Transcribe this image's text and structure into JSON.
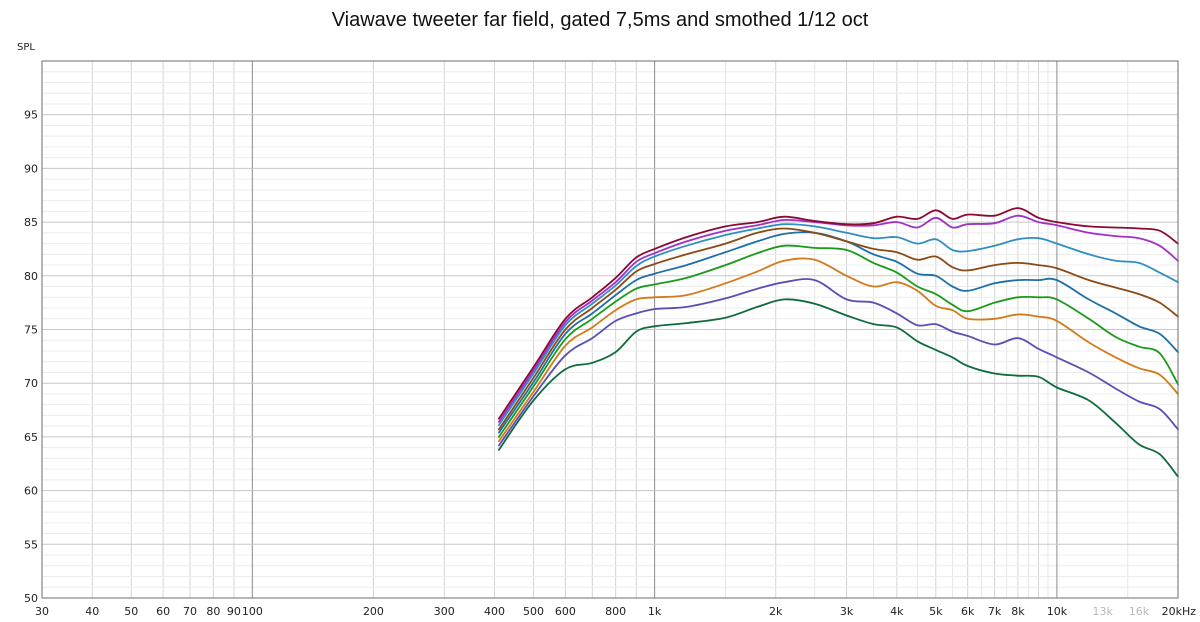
{
  "chart_data": {
    "type": "line",
    "title": "Viawave tweeter far field, gated 7,5ms and smothed 1/12 oct",
    "ylabel": "SPL",
    "xlabel": "",
    "xscale": "log",
    "xlim": [
      30,
      20000
    ],
    "ylim": [
      50,
      100
    ],
    "grid": true,
    "legend": "none",
    "x_ticks": [
      {
        "value": 30,
        "label": "30"
      },
      {
        "value": 40,
        "label": "40"
      },
      {
        "value": 50,
        "label": "50"
      },
      {
        "value": 60,
        "label": "60"
      },
      {
        "value": 70,
        "label": "70"
      },
      {
        "value": 80,
        "label": "80"
      },
      {
        "value": 90,
        "label": "90"
      },
      {
        "value": 100,
        "label": "100"
      },
      {
        "value": 200,
        "label": "200"
      },
      {
        "value": 300,
        "label": "300"
      },
      {
        "value": 400,
        "label": "400"
      },
      {
        "value": 500,
        "label": "500"
      },
      {
        "value": 600,
        "label": "600"
      },
      {
        "value": 800,
        "label": "800"
      },
      {
        "value": 1000,
        "label": "1k"
      },
      {
        "value": 2000,
        "label": "2k"
      },
      {
        "value": 3000,
        "label": "3k"
      },
      {
        "value": 4000,
        "label": "4k"
      },
      {
        "value": 5000,
        "label": "5k"
      },
      {
        "value": 6000,
        "label": "6k"
      },
      {
        "value": 7000,
        "label": "7k"
      },
      {
        "value": 8000,
        "label": "8k"
      },
      {
        "value": 10000,
        "label": "10k"
      },
      {
        "value": 13000,
        "label": "13k",
        "faded": true
      },
      {
        "value": 16000,
        "label": "16k",
        "faded": true
      },
      {
        "value": 20000,
        "label": "20kHz"
      }
    ],
    "y_ticks": [
      50,
      55,
      60,
      65,
      70,
      75,
      80,
      85,
      90,
      95
    ],
    "x": [
      410,
      500,
      600,
      700,
      800,
      900,
      1000,
      1200,
      1500,
      1800,
      2100,
      2500,
      3000,
      3500,
      4000,
      4500,
      5000,
      5500,
      6000,
      7000,
      8000,
      9000,
      10000,
      12000,
      14000,
      16000,
      18000,
      20000
    ],
    "series": [
      {
        "color": "#8b0a33",
        "values": [
          66.7,
          71.5,
          76.0,
          78.0,
          79.8,
          81.7,
          82.5,
          83.6,
          84.6,
          85.0,
          85.5,
          85.1,
          84.8,
          84.9,
          85.5,
          85.3,
          86.1,
          85.3,
          85.7,
          85.6,
          86.3,
          85.4,
          85.0,
          84.6,
          84.5,
          84.4,
          84.2,
          83.0
        ]
      },
      {
        "color": "#a030c8",
        "values": [
          66.4,
          71.2,
          75.7,
          77.7,
          79.4,
          81.3,
          82.1,
          83.2,
          84.2,
          84.7,
          85.2,
          85.0,
          84.7,
          84.7,
          85.0,
          84.5,
          85.4,
          84.5,
          84.8,
          84.9,
          85.6,
          85.0,
          84.7,
          84.0,
          83.7,
          83.5,
          82.8,
          81.4
        ]
      },
      {
        "color": "#2f8ec2",
        "values": [
          66.1,
          70.9,
          75.4,
          77.4,
          79.1,
          80.9,
          81.8,
          82.8,
          83.8,
          84.4,
          84.8,
          84.6,
          84.0,
          83.5,
          83.6,
          83.0,
          83.4,
          82.4,
          82.3,
          82.8,
          83.4,
          83.5,
          83.0,
          82.0,
          81.4,
          81.2,
          80.3,
          79.4
        ]
      },
      {
        "color": "#8a4a16",
        "values": [
          65.7,
          70.5,
          75.0,
          77.0,
          78.7,
          80.4,
          81.1,
          82.0,
          83.0,
          84.0,
          84.4,
          84.0,
          83.2,
          82.5,
          82.2,
          81.5,
          81.8,
          80.8,
          80.5,
          81.0,
          81.2,
          81.0,
          80.7,
          79.6,
          78.9,
          78.3,
          77.5,
          76.2
        ]
      },
      {
        "color": "#1d6fa8",
        "values": [
          65.4,
          70.1,
          74.6,
          76.5,
          78.2,
          79.6,
          80.2,
          81.0,
          82.2,
          83.2,
          83.9,
          84.0,
          83.2,
          82.0,
          81.3,
          80.2,
          80.0,
          79.0,
          78.6,
          79.3,
          79.6,
          79.6,
          79.6,
          77.8,
          76.5,
          75.3,
          74.6,
          72.9
        ]
      },
      {
        "color": "#1a9a1a",
        "values": [
          65.0,
          69.7,
          74.1,
          76.0,
          77.6,
          78.8,
          79.2,
          79.8,
          81.0,
          82.1,
          82.8,
          82.6,
          82.4,
          81.2,
          80.3,
          79.0,
          78.3,
          77.3,
          76.7,
          77.5,
          78.0,
          78.0,
          77.8,
          76.0,
          74.3,
          73.4,
          72.8,
          69.9
        ]
      },
      {
        "color": "#d37a1a",
        "values": [
          64.6,
          69.2,
          73.5,
          75.2,
          76.8,
          77.8,
          78.0,
          78.2,
          79.3,
          80.4,
          81.4,
          81.5,
          80.0,
          79.0,
          79.4,
          78.6,
          77.2,
          76.8,
          76.0,
          76.0,
          76.4,
          76.2,
          75.8,
          73.8,
          72.4,
          71.4,
          70.8,
          69.0
        ]
      },
      {
        "color": "#5a4fb5",
        "values": [
          64.2,
          68.8,
          72.6,
          74.2,
          75.8,
          76.5,
          76.9,
          77.1,
          77.9,
          78.8,
          79.4,
          79.6,
          77.8,
          77.5,
          76.5,
          75.4,
          75.5,
          74.8,
          74.4,
          73.6,
          74.2,
          73.2,
          72.4,
          71.0,
          69.5,
          68.3,
          67.6,
          65.7
        ]
      },
      {
        "color": "#0f6b3c",
        "values": [
          63.8,
          68.4,
          71.3,
          71.9,
          72.9,
          74.8,
          75.3,
          75.6,
          76.1,
          77.1,
          77.8,
          77.4,
          76.3,
          75.5,
          75.2,
          73.9,
          73.1,
          72.4,
          71.6,
          70.9,
          70.7,
          70.6,
          69.6,
          68.4,
          66.3,
          64.3,
          63.4,
          61.3
        ]
      }
    ]
  }
}
